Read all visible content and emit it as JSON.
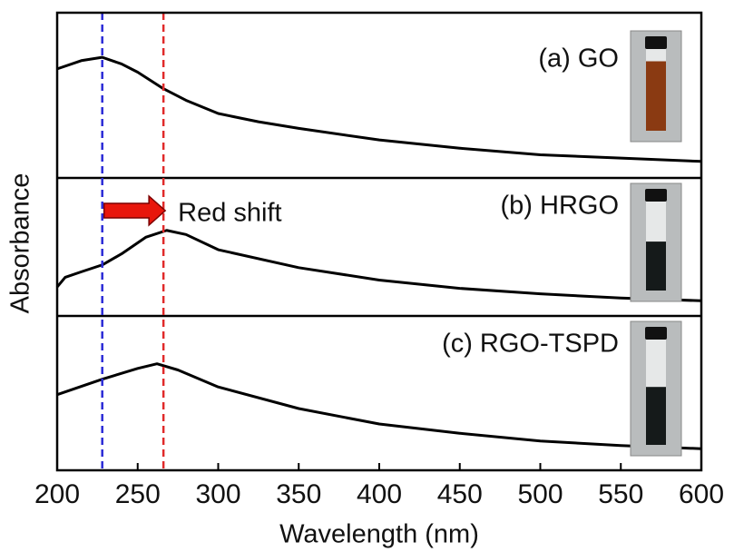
{
  "chart_data": {
    "type": "line",
    "x_label": "Wavelength (nm)",
    "y_label": "Absorbance",
    "xlim": [
      200,
      600
    ],
    "xticks": [
      200,
      250,
      300,
      350,
      400,
      450,
      500,
      550,
      600
    ],
    "annotation": "Red shift",
    "reference_lines": [
      {
        "x": 228,
        "color": "#2a2ad6"
      },
      {
        "x": 266,
        "color": "#e02a2a"
      }
    ],
    "panels": [
      {
        "name": "(a) GO",
        "color": "#000000",
        "vial_color": "#8a3a12",
        "ylim": [
          0,
          1
        ],
        "x": [
          200,
          215,
          228,
          240,
          250,
          266,
          280,
          300,
          325,
          350,
          400,
          450,
          500,
          550,
          600
        ],
        "values": [
          0.66,
          0.71,
          0.73,
          0.69,
          0.64,
          0.54,
          0.47,
          0.39,
          0.34,
          0.3,
          0.23,
          0.18,
          0.14,
          0.12,
          0.1
        ]
      },
      {
        "name": "(b) HRGO",
        "color": "#000000",
        "vial_color": "#151a1a",
        "ylim": [
          0,
          1
        ],
        "x": [
          200,
          205,
          215,
          228,
          240,
          255,
          268,
          280,
          300,
          350,
          400,
          450,
          500,
          550,
          600
        ],
        "values": [
          0.21,
          0.28,
          0.32,
          0.37,
          0.45,
          0.57,
          0.62,
          0.59,
          0.48,
          0.35,
          0.26,
          0.2,
          0.16,
          0.13,
          0.11
        ]
      },
      {
        "name": "(c) RGO-TSPD",
        "color": "#000000",
        "vial_color": "#151a1a",
        "ylim": [
          0,
          1
        ],
        "x": [
          200,
          228,
          250,
          262,
          275,
          300,
          350,
          400,
          450,
          500,
          550,
          600
        ],
        "values": [
          0.49,
          0.59,
          0.66,
          0.69,
          0.65,
          0.54,
          0.4,
          0.3,
          0.24,
          0.19,
          0.16,
          0.14
        ]
      }
    ]
  }
}
